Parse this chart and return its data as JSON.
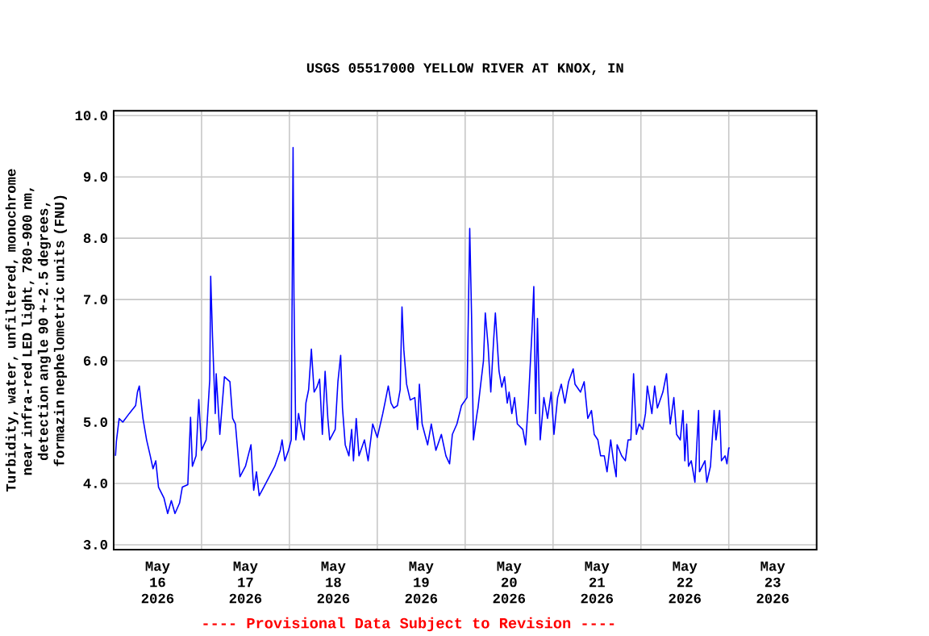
{
  "chart_data": {
    "type": "line",
    "title": "USGS 05517000 YELLOW RIVER AT KNOX, IN",
    "ylabel": "Turbidity, water, unfiltered, monochrome near infra-red LED light, 780-900 nm, detection angle 90 +-2.5 degrees, formazin nephelometric units (FNU)",
    "annotations": [
      "---- Provisional Data Subject to Revision ----"
    ],
    "xlim": [
      "2026-05-16T00:00",
      "2026-05-24T00:00"
    ],
    "xticks": [
      {
        "value": "2026-05-16T12:00",
        "label": "May 16 2026"
      },
      {
        "value": "2026-05-17T12:00",
        "label": "May 17 2026"
      },
      {
        "value": "2026-05-18T12:00",
        "label": "May 18 2026"
      },
      {
        "value": "2026-05-19T12:00",
        "label": "May 19 2026"
      },
      {
        "value": "2026-05-20T12:00",
        "label": "May 20 2026"
      },
      {
        "value": "2026-05-21T12:00",
        "label": "May 21 2026"
      },
      {
        "value": "2026-05-22T12:00",
        "label": "May 22 2026"
      },
      {
        "value": "2026-05-23T12:00",
        "label": "May 23 2026"
      },
      {
        "value": "2026-05-17T00:00",
        "label": null
      },
      {
        "value": "2026-05-18T00:00",
        "label": null
      },
      {
        "value": "2026-05-19T00:00",
        "label": null
      },
      {
        "value": "2026-05-20T00:00",
        "label": null
      },
      {
        "value": "2026-05-21T00:00",
        "label": null
      },
      {
        "value": "2026-05-22T00:00",
        "label": null
      },
      {
        "value": "2026-05-23T00:00",
        "label": null
      }
    ],
    "ylim": [
      2.92,
      10.08
    ],
    "yticks": [
      {
        "value": 3,
        "label": "3.0"
      },
      {
        "value": 4,
        "label": "4.0"
      },
      {
        "value": 5,
        "label": "5.0"
      },
      {
        "value": 6,
        "label": "6.0"
      },
      {
        "value": 7,
        "label": "7.0"
      },
      {
        "value": 8,
        "label": "8.0"
      },
      {
        "value": 9,
        "label": "9.0"
      },
      {
        "value": 10,
        "label": "10.0"
      }
    ],
    "grid": true,
    "series": [
      {
        "color": "#0000ff",
        "x": [
          "2026-05-16T00:30",
          "2026-05-16T00:45",
          "2026-05-16T01:30",
          "2026-05-16T02:30",
          "2026-05-16T04:15",
          "2026-05-16T06:00",
          "2026-05-16T06:30",
          "2026-05-16T07:00",
          "2026-05-16T08:00",
          "2026-05-16T09:00",
          "2026-05-16T10:00",
          "2026-05-16T10:45",
          "2026-05-16T11:30",
          "2026-05-16T12:15",
          "2026-05-16T13:45",
          "2026-05-16T14:45",
          "2026-05-16T15:45",
          "2026-05-16T16:45",
          "2026-05-16T18:00",
          "2026-05-16T18:45",
          "2026-05-16T20:15",
          "2026-05-16T21:00",
          "2026-05-16T21:30",
          "2026-05-16T22:30",
          "2026-05-16T23:15",
          "2026-05-17T00:00",
          "2026-05-17T01:15",
          "2026-05-17T02:15",
          "2026-05-17T02:30",
          "2026-05-17T03:00",
          "2026-05-17T03:45",
          "2026-05-17T04:00",
          "2026-05-17T05:00",
          "2026-05-17T06:15",
          "2026-05-17T07:45",
          "2026-05-17T08:30",
          "2026-05-17T09:15",
          "2026-05-17T10:00",
          "2026-05-17T10:30",
          "2026-05-17T12:00",
          "2026-05-17T13:30",
          "2026-05-17T14:15",
          "2026-05-17T15:00",
          "2026-05-17T15:45",
          "2026-05-17T17:00",
          "2026-05-17T18:30",
          "2026-05-17T20:00",
          "2026-05-17T21:30",
          "2026-05-17T22:00",
          "2026-05-17T22:45",
          "2026-05-17T23:45",
          "2026-05-18T00:30",
          "2026-05-18T01:00",
          "2026-05-18T01:15",
          "2026-05-18T01:45",
          "2026-05-18T02:30",
          "2026-05-18T03:15",
          "2026-05-18T04:00",
          "2026-05-18T04:30",
          "2026-05-18T05:15",
          "2026-05-18T06:00",
          "2026-05-18T06:45",
          "2026-05-18T07:30",
          "2026-05-18T08:15",
          "2026-05-18T09:00",
          "2026-05-18T09:45",
          "2026-05-18T10:30",
          "2026-05-18T11:00",
          "2026-05-18T12:30",
          "2026-05-18T13:15",
          "2026-05-18T14:00",
          "2026-05-18T14:30",
          "2026-05-18T15:15",
          "2026-05-18T16:15",
          "2026-05-18T17:00",
          "2026-05-18T17:30",
          "2026-05-18T18:15",
          "2026-05-18T19:00",
          "2026-05-18T20:30",
          "2026-05-18T21:30",
          "2026-05-18T22:45",
          "2026-05-19T00:00",
          "2026-05-19T01:30",
          "2026-05-19T02:15",
          "2026-05-19T03:00",
          "2026-05-19T03:45",
          "2026-05-19T04:30",
          "2026-05-19T05:30",
          "2026-05-19T06:15",
          "2026-05-19T06:45",
          "2026-05-19T07:15",
          "2026-05-19T08:00",
          "2026-05-19T09:00",
          "2026-05-19T10:15",
          "2026-05-19T11:00",
          "2026-05-19T11:30",
          "2026-05-19T12:15",
          "2026-05-19T13:00",
          "2026-05-19T13:45",
          "2026-05-19T14:45",
          "2026-05-19T16:00",
          "2026-05-19T17:30",
          "2026-05-19T18:45",
          "2026-05-19T19:45",
          "2026-05-19T20:30",
          "2026-05-19T21:45",
          "2026-05-19T23:00",
          "2026-05-20T00:30",
          "2026-05-20T01:15",
          "2026-05-20T01:45",
          "2026-05-20T02:15",
          "2026-05-20T03:15",
          "2026-05-20T03:30",
          "2026-05-20T04:15",
          "2026-05-20T05:00",
          "2026-05-20T05:30",
          "2026-05-20T06:15",
          "2026-05-20T07:00",
          "2026-05-20T07:45",
          "2026-05-20T08:15",
          "2026-05-20T09:15",
          "2026-05-20T10:00",
          "2026-05-20T10:45",
          "2026-05-20T11:30",
          "2026-05-20T12:00",
          "2026-05-20T12:45",
          "2026-05-20T13:30",
          "2026-05-20T14:15",
          "2026-05-20T15:45",
          "2026-05-20T16:30",
          "2026-05-20T17:15",
          "2026-05-20T18:15",
          "2026-05-20T18:45",
          "2026-05-20T19:15",
          "2026-05-20T19:45",
          "2026-05-20T20:30",
          "2026-05-20T21:30",
          "2026-05-20T22:30",
          "2026-05-20T23:30",
          "2026-05-21T00:15",
          "2026-05-21T01:15",
          "2026-05-21T02:15",
          "2026-05-21T03:15",
          "2026-05-21T04:15",
          "2026-05-21T05:30",
          "2026-05-21T06:00",
          "2026-05-21T07:30",
          "2026-05-21T08:30",
          "2026-05-21T09:30",
          "2026-05-21T10:30",
          "2026-05-21T11:15",
          "2026-05-21T12:15",
          "2026-05-21T13:00",
          "2026-05-21T14:00",
          "2026-05-21T14:45",
          "2026-05-21T15:45",
          "2026-05-21T16:30",
          "2026-05-21T17:15",
          "2026-05-21T17:30",
          "2026-05-21T18:45",
          "2026-05-21T19:45",
          "2026-05-21T20:30",
          "2026-05-21T21:15",
          "2026-05-21T22:00",
          "2026-05-21T22:45",
          "2026-05-21T23:30",
          "2026-05-22T00:30",
          "2026-05-22T01:15",
          "2026-05-22T01:45",
          "2026-05-22T03:00",
          "2026-05-22T03:45",
          "2026-05-22T04:30",
          "2026-05-22T06:00",
          "2026-05-22T07:00",
          "2026-05-22T08:00",
          "2026-05-22T09:00",
          "2026-05-22T09:45",
          "2026-05-22T10:45",
          "2026-05-22T11:30",
          "2026-05-22T12:00",
          "2026-05-22T12:30",
          "2026-05-22T13:00",
          "2026-05-22T13:45",
          "2026-05-22T14:45",
          "2026-05-22T15:45",
          "2026-05-22T16:00",
          "2026-05-22T17:30",
          "2026-05-22T18:00",
          "2026-05-22T19:00",
          "2026-05-22T20:00",
          "2026-05-22T20:30",
          "2026-05-22T21:30",
          "2026-05-22T22:00",
          "2026-05-22T23:00",
          "2026-05-22T23:30",
          "2026-05-23T00:00",
          "2026-05-23T00:15"
        ],
        "values": [
          4.45,
          4.69,
          5.06,
          5.0,
          5.14,
          5.27,
          5.49,
          5.59,
          5.06,
          4.71,
          4.45,
          4.24,
          4.37,
          3.94,
          3.76,
          3.51,
          3.72,
          3.51,
          3.68,
          3.94,
          3.98,
          5.08,
          4.28,
          4.45,
          5.37,
          4.54,
          4.71,
          5.7,
          7.38,
          6.39,
          5.14,
          5.79,
          4.8,
          5.74,
          5.66,
          5.06,
          4.97,
          4.45,
          4.11,
          4.28,
          4.63,
          3.89,
          4.19,
          3.8,
          3.94,
          4.11,
          4.28,
          4.54,
          4.71,
          4.37,
          4.54,
          4.71,
          9.48,
          7.04,
          4.71,
          5.14,
          4.88,
          4.71,
          5.31,
          5.53,
          6.19,
          5.49,
          5.57,
          5.7,
          4.8,
          5.83,
          5.06,
          4.71,
          4.88,
          5.66,
          6.09,
          5.23,
          4.63,
          4.45,
          4.88,
          4.37,
          5.06,
          4.45,
          4.71,
          4.37,
          4.97,
          4.75,
          5.14,
          5.36,
          5.59,
          5.31,
          5.23,
          5.27,
          5.53,
          6.88,
          6.18,
          5.62,
          5.36,
          5.4,
          4.88,
          5.62,
          4.97,
          4.8,
          4.63,
          4.97,
          4.54,
          4.8,
          4.45,
          4.32,
          4.8,
          4.97,
          5.27,
          5.4,
          8.16,
          6.74,
          4.71,
          5.14,
          5.23,
          5.62,
          6.0,
          6.78,
          6.26,
          5.49,
          6.31,
          6.78,
          5.83,
          5.57,
          5.74,
          5.31,
          5.49,
          5.14,
          5.4,
          4.97,
          4.88,
          4.63,
          5.31,
          6.48,
          7.21,
          5.14,
          6.69,
          4.71,
          5.4,
          5.06,
          5.49,
          4.8,
          5.4,
          5.62,
          5.31,
          5.66,
          5.87,
          5.62,
          5.49,
          5.66,
          5.06,
          5.19,
          4.8,
          4.71,
          4.45,
          4.45,
          4.19,
          4.71,
          4.37,
          4.11,
          4.63,
          4.45,
          4.37,
          4.71,
          4.71,
          5.79,
          4.8,
          4.97,
          4.88,
          5.14,
          5.59,
          5.14,
          5.59,
          5.23,
          5.49,
          5.79,
          4.97,
          5.4,
          4.8,
          4.71,
          5.19,
          4.37,
          4.97,
          4.28,
          4.37,
          4.02,
          5.19,
          4.19,
          4.37,
          4.02,
          4.28,
          5.19,
          4.71,
          5.19,
          4.37,
          4.45,
          4.32,
          4.58,
          4.58
        ]
      }
    ]
  }
}
